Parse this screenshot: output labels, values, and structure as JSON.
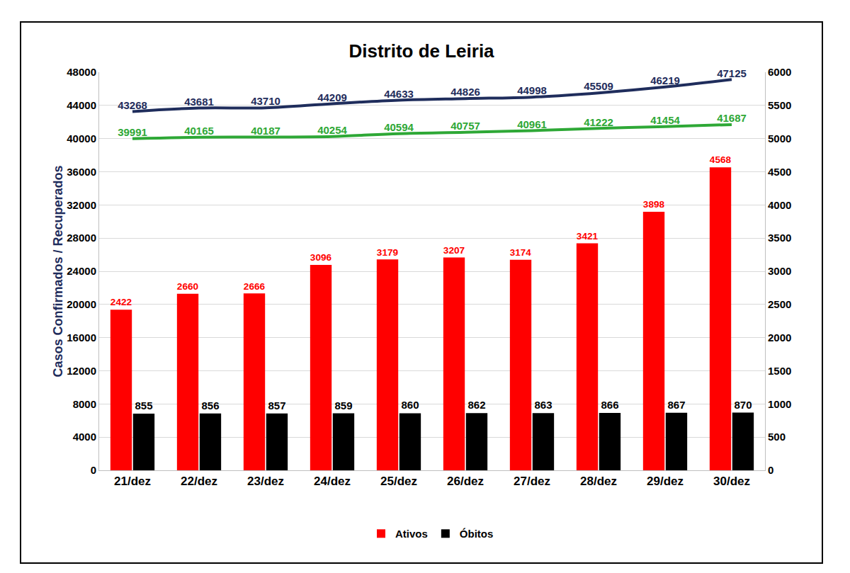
{
  "chart_data": {
    "type": "bar",
    "title": "Distrito de Leiria",
    "ylabel": "Casos Confirmados / Recuperados",
    "categories": [
      "21/dez",
      "22/dez",
      "23/dez",
      "24/dez",
      "25/dez",
      "26/dez",
      "27/dez",
      "28/dez",
      "29/dez",
      "30/dez"
    ],
    "ylim": [
      0,
      48000
    ],
    "yticks": [
      0,
      4000,
      8000,
      12000,
      16000,
      20000,
      24000,
      28000,
      32000,
      36000,
      40000,
      44000,
      48000
    ],
    "y2lim": [
      0,
      6000
    ],
    "y2ticks": [
      0,
      500,
      1000,
      1500,
      2000,
      2500,
      3000,
      3500,
      4000,
      4500,
      5000,
      5500,
      6000
    ],
    "grid": true,
    "legend": "bottom",
    "data_labels": true,
    "series": [
      {
        "name": "Ativos",
        "type": "bar",
        "color": "#ff0000",
        "axis": "y2",
        "values": [
          2422,
          2660,
          2666,
          3096,
          3179,
          3207,
          3174,
          3421,
          3898,
          4568
        ]
      },
      {
        "name": "Óbitos",
        "type": "bar",
        "color": "#000000",
        "axis": "y2",
        "values": [
          855,
          856,
          857,
          859,
          860,
          862,
          863,
          866,
          867,
          870
        ]
      },
      {
        "type": "line",
        "color": "#1f2d5c",
        "values": [
          43268,
          43681,
          43710,
          44209,
          44633,
          44826,
          44998,
          45509,
          46219,
          47125
        ]
      },
      {
        "type": "line",
        "color": "#2ea836",
        "values": [
          39991,
          40165,
          40187,
          40254,
          40594,
          40757,
          40961,
          41222,
          41454,
          41687
        ]
      }
    ]
  }
}
